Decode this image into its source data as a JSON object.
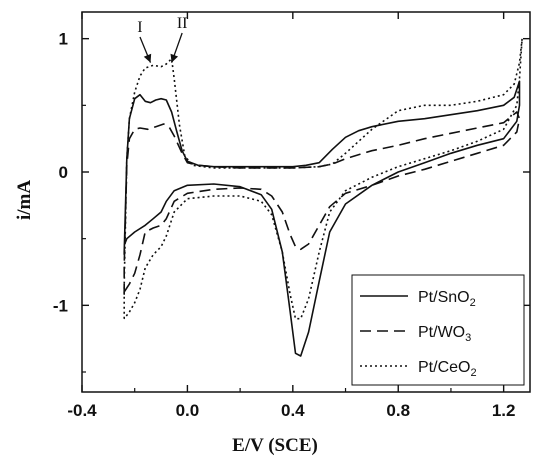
{
  "chart_data": {
    "type": "line",
    "xlabel": "E/V (SCE)",
    "ylabel": "i/mA",
    "xlim": [
      -0.4,
      1.3
    ],
    "ylim": [
      -1.65,
      1.2
    ],
    "xticks": [
      -0.4,
      0.0,
      0.4,
      0.8,
      1.2
    ],
    "xtick_labels": [
      "-0.4",
      "0.0",
      "0.4",
      "0.8",
      "1.2"
    ],
    "yticks": [
      -1,
      0,
      1
    ],
    "ytick_labels": [
      "-1",
      "0",
      "1"
    ],
    "grid": false,
    "legend_position": "bottom-right",
    "annotations": [
      {
        "text": "I",
        "x": -0.18,
        "y": 1.05,
        "target": [
          -0.14,
          0.82
        ]
      },
      {
        "text": "II",
        "x": -0.02,
        "y": 1.08,
        "target": [
          -0.06,
          0.82
        ]
      }
    ],
    "series": [
      {
        "name": "Pt/SnO",
        "subscript": "2",
        "style": "solid",
        "points": [
          [
            -0.24,
            -0.62
          ],
          [
            -0.24,
            -0.6
          ],
          [
            -0.23,
            0.1
          ],
          [
            -0.22,
            0.4
          ],
          [
            -0.2,
            0.55
          ],
          [
            -0.18,
            0.58
          ],
          [
            -0.16,
            0.53
          ],
          [
            -0.14,
            0.52
          ],
          [
            -0.12,
            0.54
          ],
          [
            -0.1,
            0.55
          ],
          [
            -0.08,
            0.54
          ],
          [
            -0.06,
            0.45
          ],
          [
            -0.04,
            0.3
          ],
          [
            -0.02,
            0.16
          ],
          [
            0.0,
            0.08
          ],
          [
            0.04,
            0.05
          ],
          [
            0.1,
            0.04
          ],
          [
            0.2,
            0.04
          ],
          [
            0.3,
            0.04
          ],
          [
            0.4,
            0.04
          ],
          [
            0.45,
            0.05
          ],
          [
            0.5,
            0.07
          ],
          [
            0.55,
            0.17
          ],
          [
            0.6,
            0.26
          ],
          [
            0.65,
            0.31
          ],
          [
            0.7,
            0.34
          ],
          [
            0.8,
            0.38
          ],
          [
            0.9,
            0.4
          ],
          [
            1.0,
            0.43
          ],
          [
            1.1,
            0.46
          ],
          [
            1.2,
            0.5
          ],
          [
            1.24,
            0.56
          ],
          [
            1.26,
            0.68
          ],
          [
            1.26,
            0.5
          ],
          [
            1.25,
            0.38
          ],
          [
            1.2,
            0.25
          ],
          [
            1.1,
            0.2
          ],
          [
            1.0,
            0.14
          ],
          [
            0.9,
            0.07
          ],
          [
            0.8,
            0.0
          ],
          [
            0.7,
            -0.1
          ],
          [
            0.6,
            -0.24
          ],
          [
            0.54,
            -0.45
          ],
          [
            0.5,
            -0.82
          ],
          [
            0.46,
            -1.2
          ],
          [
            0.43,
            -1.38
          ],
          [
            0.41,
            -1.36
          ],
          [
            0.39,
            -1.05
          ],
          [
            0.36,
            -0.6
          ],
          [
            0.32,
            -0.28
          ],
          [
            0.28,
            -0.17
          ],
          [
            0.2,
            -0.11
          ],
          [
            0.1,
            -0.09
          ],
          [
            0.0,
            -0.1
          ],
          [
            -0.05,
            -0.14
          ],
          [
            -0.08,
            -0.22
          ],
          [
            -0.1,
            -0.3
          ],
          [
            -0.13,
            -0.35
          ],
          [
            -0.16,
            -0.4
          ],
          [
            -0.2,
            -0.45
          ],
          [
            -0.23,
            -0.5
          ],
          [
            -0.24,
            -0.55
          ]
        ]
      },
      {
        "name": "Pt/WO",
        "subscript": "3",
        "style": "dashed",
        "points": [
          [
            -0.24,
            -0.92
          ],
          [
            -0.24,
            -0.7
          ],
          [
            -0.23,
            0.05
          ],
          [
            -0.22,
            0.25
          ],
          [
            -0.2,
            0.32
          ],
          [
            -0.18,
            0.33
          ],
          [
            -0.15,
            0.32
          ],
          [
            -0.12,
            0.34
          ],
          [
            -0.09,
            0.36
          ],
          [
            -0.07,
            0.34
          ],
          [
            -0.05,
            0.27
          ],
          [
            -0.02,
            0.14
          ],
          [
            0.0,
            0.07
          ],
          [
            0.04,
            0.05
          ],
          [
            0.1,
            0.04
          ],
          [
            0.2,
            0.03
          ],
          [
            0.3,
            0.03
          ],
          [
            0.4,
            0.03
          ],
          [
            0.5,
            0.04
          ],
          [
            0.55,
            0.06
          ],
          [
            0.6,
            0.1
          ],
          [
            0.7,
            0.16
          ],
          [
            0.8,
            0.2
          ],
          [
            0.9,
            0.25
          ],
          [
            1.0,
            0.29
          ],
          [
            1.1,
            0.33
          ],
          [
            1.2,
            0.37
          ],
          [
            1.25,
            0.45
          ],
          [
            1.26,
            0.4
          ],
          [
            1.25,
            0.3
          ],
          [
            1.2,
            0.2
          ],
          [
            1.1,
            0.14
          ],
          [
            1.0,
            0.08
          ],
          [
            0.9,
            0.02
          ],
          [
            0.8,
            -0.03
          ],
          [
            0.7,
            -0.1
          ],
          [
            0.6,
            -0.16
          ],
          [
            0.54,
            -0.26
          ],
          [
            0.5,
            -0.4
          ],
          [
            0.46,
            -0.54
          ],
          [
            0.43,
            -0.58
          ],
          [
            0.41,
            -0.56
          ],
          [
            0.39,
            -0.47
          ],
          [
            0.36,
            -0.3
          ],
          [
            0.32,
            -0.18
          ],
          [
            0.28,
            -0.13
          ],
          [
            0.2,
            -0.12
          ],
          [
            0.1,
            -0.13
          ],
          [
            0.0,
            -0.16
          ],
          [
            -0.05,
            -0.22
          ],
          [
            -0.08,
            -0.35
          ],
          [
            -0.1,
            -0.4
          ],
          [
            -0.13,
            -0.42
          ],
          [
            -0.16,
            -0.45
          ],
          [
            -0.18,
            -0.62
          ],
          [
            -0.2,
            -0.76
          ],
          [
            -0.22,
            -0.84
          ],
          [
            -0.24,
            -0.9
          ]
        ]
      },
      {
        "name": "Pt/CeO",
        "subscript": "2",
        "style": "dotted",
        "points": [
          [
            -0.24,
            -1.1
          ],
          [
            -0.24,
            -0.85
          ],
          [
            -0.23,
            0.1
          ],
          [
            -0.22,
            0.4
          ],
          [
            -0.2,
            0.6
          ],
          [
            -0.18,
            0.72
          ],
          [
            -0.16,
            0.78
          ],
          [
            -0.13,
            0.8
          ],
          [
            -0.1,
            0.79
          ],
          [
            -0.08,
            0.81
          ],
          [
            -0.06,
            0.85
          ],
          [
            -0.05,
            0.7
          ],
          [
            -0.03,
            0.35
          ],
          [
            -0.01,
            0.12
          ],
          [
            0.02,
            0.05
          ],
          [
            0.1,
            0.03
          ],
          [
            0.2,
            0.03
          ],
          [
            0.3,
            0.03
          ],
          [
            0.4,
            0.03
          ],
          [
            0.5,
            0.04
          ],
          [
            0.55,
            0.06
          ],
          [
            0.6,
            0.14
          ],
          [
            0.7,
            0.32
          ],
          [
            0.8,
            0.46
          ],
          [
            0.9,
            0.5
          ],
          [
            1.0,
            0.5
          ],
          [
            1.1,
            0.53
          ],
          [
            1.2,
            0.58
          ],
          [
            1.24,
            0.66
          ],
          [
            1.26,
            0.82
          ],
          [
            1.27,
            1.0
          ],
          [
            1.26,
            0.7
          ],
          [
            1.25,
            0.5
          ],
          [
            1.2,
            0.32
          ],
          [
            1.1,
            0.23
          ],
          [
            1.0,
            0.16
          ],
          [
            0.9,
            0.1
          ],
          [
            0.8,
            0.04
          ],
          [
            0.7,
            -0.04
          ],
          [
            0.6,
            -0.14
          ],
          [
            0.54,
            -0.3
          ],
          [
            0.5,
            -0.6
          ],
          [
            0.46,
            -0.95
          ],
          [
            0.43,
            -1.1
          ],
          [
            0.41,
            -1.1
          ],
          [
            0.39,
            -0.92
          ],
          [
            0.36,
            -0.6
          ],
          [
            0.32,
            -0.32
          ],
          [
            0.28,
            -0.22
          ],
          [
            0.2,
            -0.18
          ],
          [
            0.1,
            -0.18
          ],
          [
            0.0,
            -0.2
          ],
          [
            -0.05,
            -0.3
          ],
          [
            -0.08,
            -0.48
          ],
          [
            -0.1,
            -0.56
          ],
          [
            -0.13,
            -0.62
          ],
          [
            -0.16,
            -0.72
          ],
          [
            -0.18,
            -0.88
          ],
          [
            -0.2,
            -0.98
          ],
          [
            -0.22,
            -1.05
          ],
          [
            -0.24,
            -1.1
          ]
        ]
      }
    ]
  }
}
